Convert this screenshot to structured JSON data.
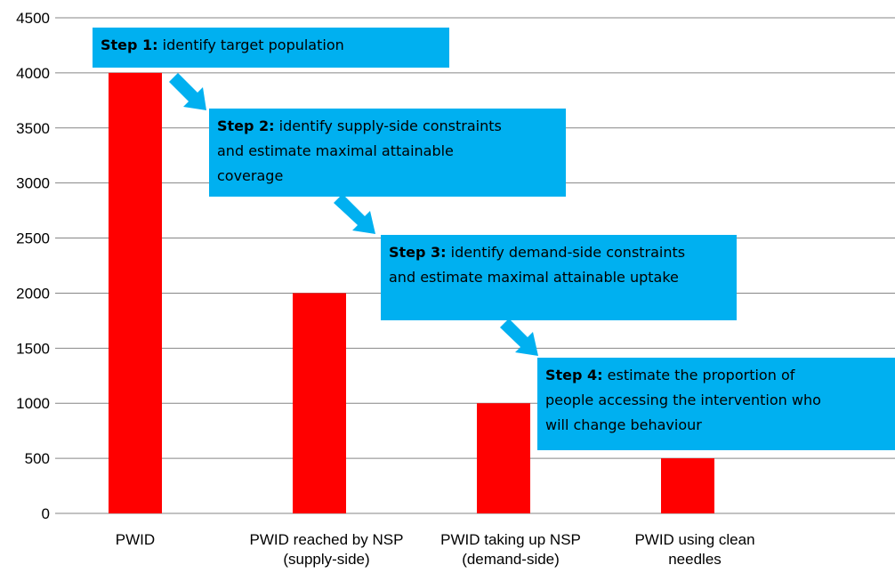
{
  "chart_data": {
    "type": "bar",
    "categories": [
      [
        "PWID"
      ],
      [
        "PWID reached by NSP",
        "(supply-side)"
      ],
      [
        "PWID taking up NSP",
        "(demand-side)"
      ],
      [
        "PWID using clean",
        "needles"
      ]
    ],
    "values": [
      4000,
      2000,
      1000,
      500
    ],
    "color": "#ff0000",
    "ylim": [
      0,
      4500
    ],
    "yticks": [
      0,
      500,
      1000,
      1500,
      2000,
      2500,
      3000,
      3500,
      4000,
      4500
    ],
    "grid": true,
    "annotations": [
      {
        "label": "Step 1:",
        "lines": [
          "identify target population"
        ]
      },
      {
        "label": "Step 2:",
        "lines": [
          "identify supply-side constraints",
          "and estimate maximal attainable",
          "coverage"
        ]
      },
      {
        "label": "Step 3:",
        "lines": [
          "identify demand-side constraints",
          "and estimate maximal attainable uptake"
        ]
      },
      {
        "label": "Step 4:",
        "lines": [
          "estimate the proportion of",
          "people accessing the intervention who",
          "will change behaviour"
        ]
      }
    ],
    "annotation_color": "#00b0f0"
  }
}
